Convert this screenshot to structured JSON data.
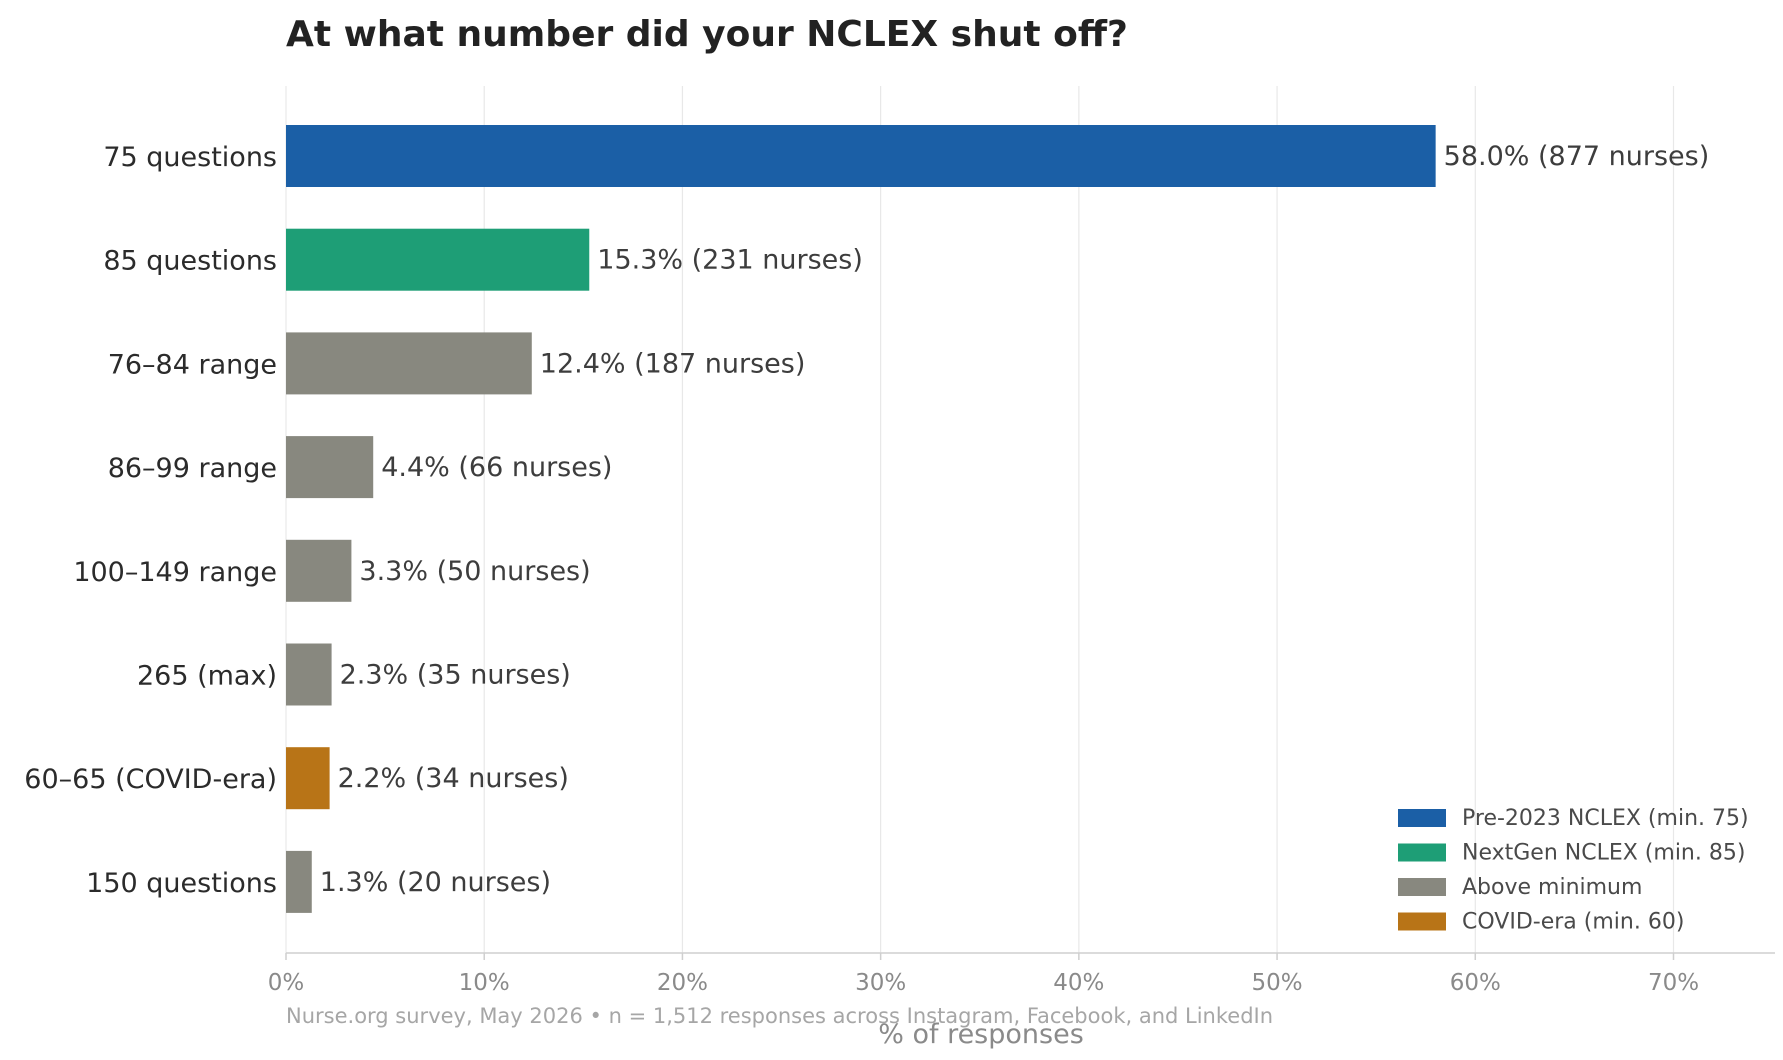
{
  "chart_data": {
    "type": "bar",
    "orientation": "horizontal",
    "title": "At what number did your NCLEX shut off?",
    "xlabel": "% of responses",
    "ylabel": "",
    "xlim": [
      0,
      75
    ],
    "xticks": [
      0,
      10,
      20,
      30,
      40,
      50,
      60,
      70
    ],
    "xtick_labels": [
      "0%",
      "10%",
      "20%",
      "30%",
      "40%",
      "50%",
      "60%",
      "70%"
    ],
    "grid": "vertical",
    "legend_position": "bottom-right",
    "categories": [
      "75 questions",
      "85 questions",
      "76–84 range",
      "86–99 range",
      "100–149 range",
      "265 (max)",
      "60–65 (COVID-era)",
      "150 questions"
    ],
    "values": [
      58.0,
      15.3,
      12.4,
      4.4,
      3.3,
      2.3,
      2.2,
      1.3
    ],
    "value_labels": [
      "58.0%  (877 nurses)",
      "15.3%  (231 nurses)",
      "12.4%  (187 nurses)",
      "4.4%  (66 nurses)",
      "3.3%  (50 nurses)",
      "2.3%  (35 nurses)",
      "2.2%  (34 nurses)",
      "1.3%  (20 nurses)"
    ],
    "bar_groups": [
      0,
      1,
      2,
      2,
      2,
      2,
      3,
      2
    ],
    "legend": [
      {
        "label": "Pre-2023 NCLEX (min. 75)",
        "color": "#1b5fa6"
      },
      {
        "label": "NextGen NCLEX (min. 85)",
        "color": "#1e9e76"
      },
      {
        "label": "Above minimum",
        "color": "#88887f"
      },
      {
        "label": "COVID-era (min. 60)",
        "color": "#b87417"
      }
    ],
    "source": "Nurse.org survey, May 2026  •  n = 1,512 responses across Instagram, Facebook, and LinkedIn"
  }
}
